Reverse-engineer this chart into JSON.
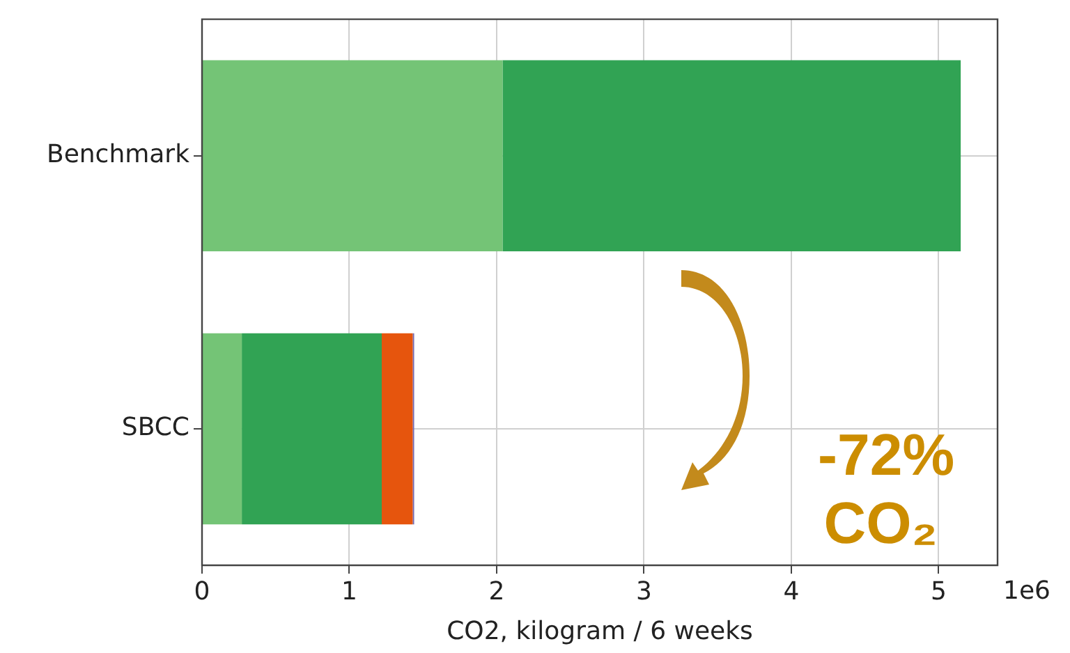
{
  "chart_data": {
    "type": "bar",
    "orientation": "horizontal",
    "stacked": true,
    "categories": [
      "Benchmark",
      "SBCC"
    ],
    "series": [
      {
        "color": "#74c476",
        "values": [
          2.04,
          0.27
        ]
      },
      {
        "color": "#31a354",
        "values": [
          3.11,
          0.95
        ]
      },
      {
        "color": "#e6550d",
        "values": [
          0,
          0.21
        ]
      },
      {
        "color": "#756bb1",
        "values": [
          0,
          0.01
        ]
      }
    ],
    "xlabel": "CO2, kilogram / 6 weeks",
    "xlim": [
      0,
      5.4
    ],
    "xticks": [
      0,
      1,
      2,
      3,
      4,
      5
    ],
    "annotations": [
      "1e6",
      "-72%",
      "CO₂"
    ],
    "grid": true,
    "legend": false
  }
}
